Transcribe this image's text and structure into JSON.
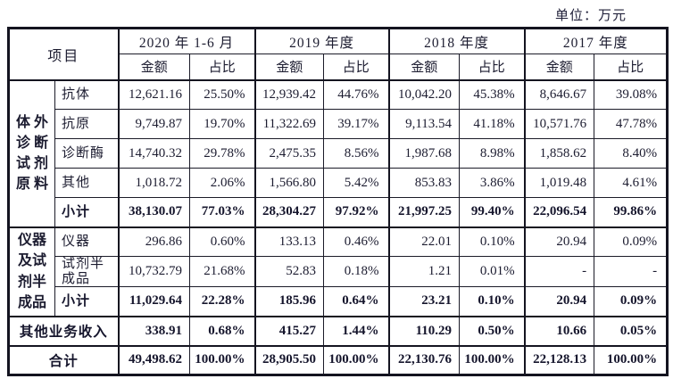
{
  "unit_label": "单位：万元",
  "table": {
    "header": {
      "item_label": "项目",
      "periods": [
        "2020 年 1-6 月",
        "2019 年度",
        "2018 年度",
        "2017 年度"
      ],
      "sub_headers": [
        "金额",
        "占比"
      ]
    },
    "groups": [
      {
        "name": "体外诊断试剂原料",
        "display_lines": [
          "体 外",
          "诊 断",
          "试 剂",
          "原 料"
        ],
        "rows": [
          {
            "label": "抗体",
            "bold": false,
            "values": [
              "12,621.16",
              "25.50%",
              "12,939.42",
              "44.76%",
              "10,042.20",
              "45.38%",
              "8,646.67",
              "39.08%"
            ]
          },
          {
            "label": "抗原",
            "bold": false,
            "values": [
              "9,749.87",
              "19.70%",
              "11,322.69",
              "39.17%",
              "9,113.54",
              "41.18%",
              "10,571.76",
              "47.78%"
            ]
          },
          {
            "label": "诊断酶",
            "bold": false,
            "values": [
              "14,740.32",
              "29.78%",
              "2,475.35",
              "8.56%",
              "1,987.68",
              "8.98%",
              "1,858.62",
              "8.40%"
            ]
          },
          {
            "label": "其他",
            "bold": false,
            "values": [
              "1,018.72",
              "2.06%",
              "1,566.80",
              "5.42%",
              "853.83",
              "3.86%",
              "1,019.48",
              "4.61%"
            ]
          },
          {
            "label": "小计",
            "bold": true,
            "values": [
              "38,130.07",
              "77.03%",
              "28,304.27",
              "97.92%",
              "21,997.25",
              "99.40%",
              "22,096.54",
              "99.86%"
            ]
          }
        ]
      },
      {
        "name": "仪器及试剂半成品",
        "display_lines": [
          "仪器",
          "及试",
          "剂半",
          "成品"
        ],
        "rows": [
          {
            "label": "仪器",
            "bold": false,
            "values": [
              "296.86",
              "0.60%",
              "133.13",
              "0.46%",
              "22.01",
              "0.10%",
              "20.94",
              "0.09%"
            ]
          },
          {
            "label": "试剂半成品",
            "bold": false,
            "values": [
              "10,732.79",
              "21.68%",
              "52.83",
              "0.18%",
              "1.21",
              "0.01%",
              "-",
              "-"
            ]
          },
          {
            "label": "小计",
            "bold": true,
            "values": [
              "11,029.64",
              "22.28%",
              "185.96",
              "0.64%",
              "23.21",
              "0.10%",
              "20.94",
              "0.09%"
            ]
          }
        ]
      }
    ],
    "summary_rows": [
      {
        "label": "其他业务收入",
        "bold": true,
        "values": [
          "338.91",
          "0.68%",
          "415.27",
          "1.44%",
          "110.29",
          "0.50%",
          "10.66",
          "0.05%"
        ]
      },
      {
        "label": "合计",
        "bold": true,
        "values": [
          "49,498.62",
          "100.00%",
          "28,905.50",
          "100.00%",
          "22,130.76",
          "100.00%",
          "22,128.13",
          "100.00%"
        ]
      }
    ]
  }
}
